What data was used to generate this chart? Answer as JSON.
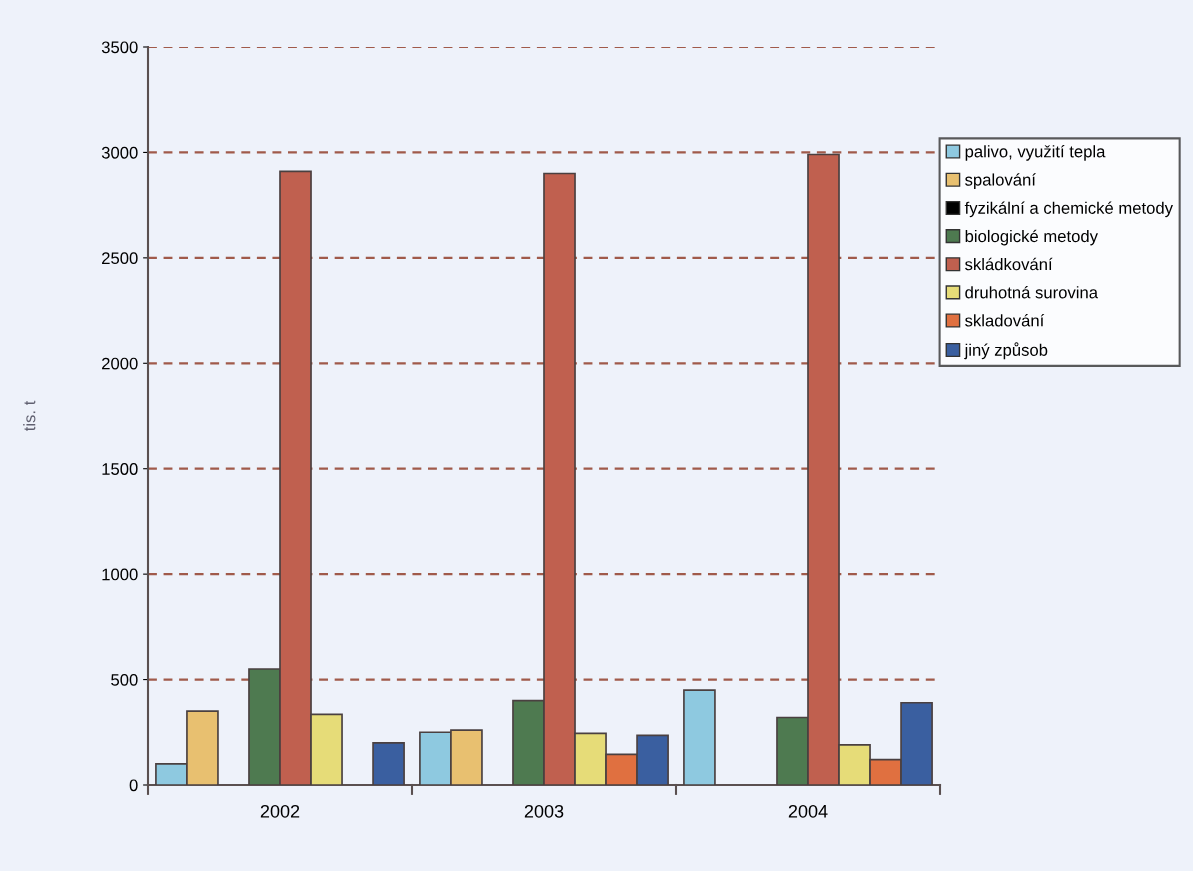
{
  "chart_data": {
    "type": "bar",
    "ylabel": "tis. t",
    "categories": [
      "2002",
      "2003",
      "2004"
    ],
    "series": [
      {
        "name": "palivo, využití tepla",
        "color": "#8ec9e0",
        "values": [
          100,
          250,
          450
        ]
      },
      {
        "name": "spalování",
        "color": "#e8c070",
        "values": [
          350,
          260,
          null
        ]
      },
      {
        "name": "fyzikální a chemické metody",
        "color": "#000000",
        "values": [
          null,
          null,
          null
        ]
      },
      {
        "name": "biologické metody",
        "color": "#4e7a50",
        "values": [
          550,
          400,
          320
        ]
      },
      {
        "name": "skládkování",
        "color": "#c0604f",
        "values": [
          2910,
          2900,
          2990
        ]
      },
      {
        "name": "druhotná surovina",
        "color": "#e6dc78",
        "values": [
          335,
          245,
          190
        ]
      },
      {
        "name": "skladování",
        "color": "#e07040",
        "values": [
          null,
          145,
          120
        ]
      },
      {
        "name": "jiný způsob",
        "color": "#3a5fa0",
        "values": [
          200,
          235,
          390
        ]
      }
    ],
    "ylim": [
      0,
      3500
    ],
    "yticks": [
      0,
      500,
      1000,
      1500,
      2000,
      2500,
      3000,
      3500
    ],
    "grid": "y",
    "legend": "top right"
  }
}
